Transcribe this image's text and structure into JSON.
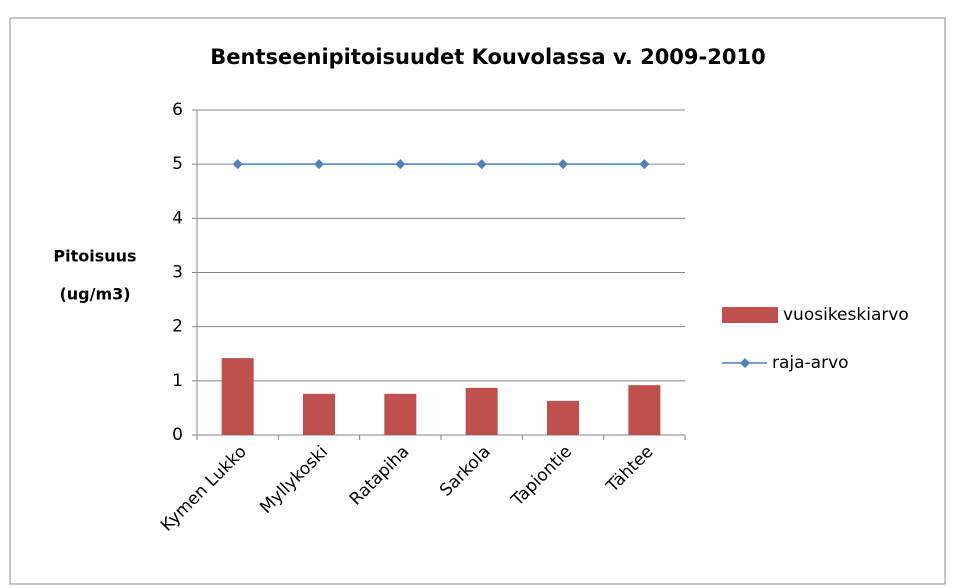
{
  "chart_data": {
    "type": "bar",
    "title": "Bentseenipitoisuudet Kouvolassa v. 2009-2010",
    "y_label": [
      "Pitoisuus",
      "(ug/m3)"
    ],
    "categories": [
      "Kymen Lukko",
      "Myllykoski",
      "Ratapiha",
      "Sarkola",
      "Tapiontie",
      "Tähtee"
    ],
    "series": [
      {
        "name": "vuosikeskiarvo",
        "type": "bar",
        "color": "#c0504d",
        "values": [
          1.42,
          0.76,
          0.76,
          0.87,
          0.63,
          0.92
        ]
      },
      {
        "name": "raja-arvo",
        "type": "line",
        "color": "#4f81bd",
        "values": [
          5,
          5,
          5,
          5,
          5,
          5
        ]
      }
    ],
    "ylim": [
      0,
      6
    ],
    "yticks": [
      0,
      1,
      2,
      3,
      4,
      5,
      6
    ],
    "grid": true,
    "legend": "right"
  }
}
